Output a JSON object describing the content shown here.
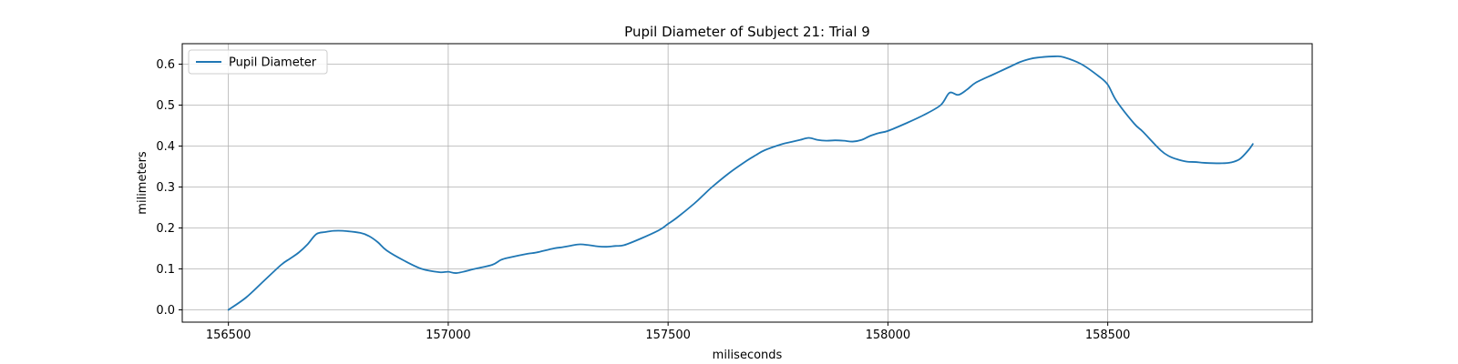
{
  "chart_data": {
    "type": "line",
    "title": "Pupil Diameter of Subject 21: Trial 9",
    "xlabel": "miliseconds",
    "ylabel": "milimeters",
    "xlim": [
      156395,
      158965
    ],
    "ylim": [
      -0.03,
      0.65
    ],
    "xticks": [
      156500,
      157000,
      157500,
      158000,
      158500
    ],
    "yticks": [
      0.0,
      0.1,
      0.2,
      0.3,
      0.4,
      0.5,
      0.6
    ],
    "xtick_labels": [
      "156500",
      "157000",
      "157500",
      "158000",
      "158500"
    ],
    "ytick_labels": [
      "0.0",
      "0.1",
      "0.2",
      "0.3",
      "0.4",
      "0.5",
      "0.6"
    ],
    "grid": true,
    "legend_position": "top-left",
    "series": [
      {
        "name": "Pupil Diameter",
        "color": "#1f77b4",
        "x": [
          156500,
          156540,
          156580,
          156620,
          156640,
          156660,
          156680,
          156700,
          156720,
          156740,
          156760,
          156800,
          156820,
          156840,
          156860,
          156900,
          156940,
          156980,
          157000,
          157020,
          157060,
          157100,
          157120,
          157140,
          157180,
          157200,
          157240,
          157260,
          157280,
          157300,
          157320,
          157340,
          157360,
          157380,
          157400,
          157440,
          157480,
          157500,
          157520,
          157560,
          157580,
          157600,
          157640,
          157680,
          157700,
          157720,
          157760,
          157780,
          157800,
          157820,
          157840,
          157860,
          157880,
          157900,
          157920,
          157940,
          157960,
          157980,
          158000,
          158040,
          158080,
          158120,
          158140,
          158160,
          158180,
          158200,
          158240,
          158260,
          158280,
          158300,
          158320,
          158340,
          158380,
          158400,
          158440,
          158480,
          158500,
          158520,
          158560,
          158580,
          158620,
          158640,
          158660,
          158680,
          158700,
          158720,
          158760,
          158780,
          158800,
          158820,
          158830
        ],
        "y": [
          0.0,
          0.03,
          0.07,
          0.11,
          0.125,
          0.14,
          0.16,
          0.185,
          0.19,
          0.193,
          0.193,
          0.188,
          0.18,
          0.165,
          0.145,
          0.12,
          0.1,
          0.092,
          0.093,
          0.09,
          0.1,
          0.11,
          0.122,
          0.128,
          0.137,
          0.14,
          0.15,
          0.153,
          0.157,
          0.16,
          0.158,
          0.155,
          0.154,
          0.156,
          0.158,
          0.175,
          0.195,
          0.21,
          0.225,
          0.26,
          0.28,
          0.3,
          0.335,
          0.365,
          0.378,
          0.39,
          0.405,
          0.41,
          0.415,
          0.42,
          0.415,
          0.413,
          0.414,
          0.413,
          0.411,
          0.415,
          0.425,
          0.432,
          0.437,
          0.455,
          0.475,
          0.5,
          0.53,
          0.525,
          0.538,
          0.555,
          0.575,
          0.585,
          0.595,
          0.605,
          0.612,
          0.616,
          0.619,
          0.617,
          0.6,
          0.57,
          0.55,
          0.51,
          0.455,
          0.435,
          0.39,
          0.375,
          0.367,
          0.362,
          0.361,
          0.359,
          0.358,
          0.36,
          0.368,
          0.39,
          0.405
        ]
      }
    ]
  }
}
